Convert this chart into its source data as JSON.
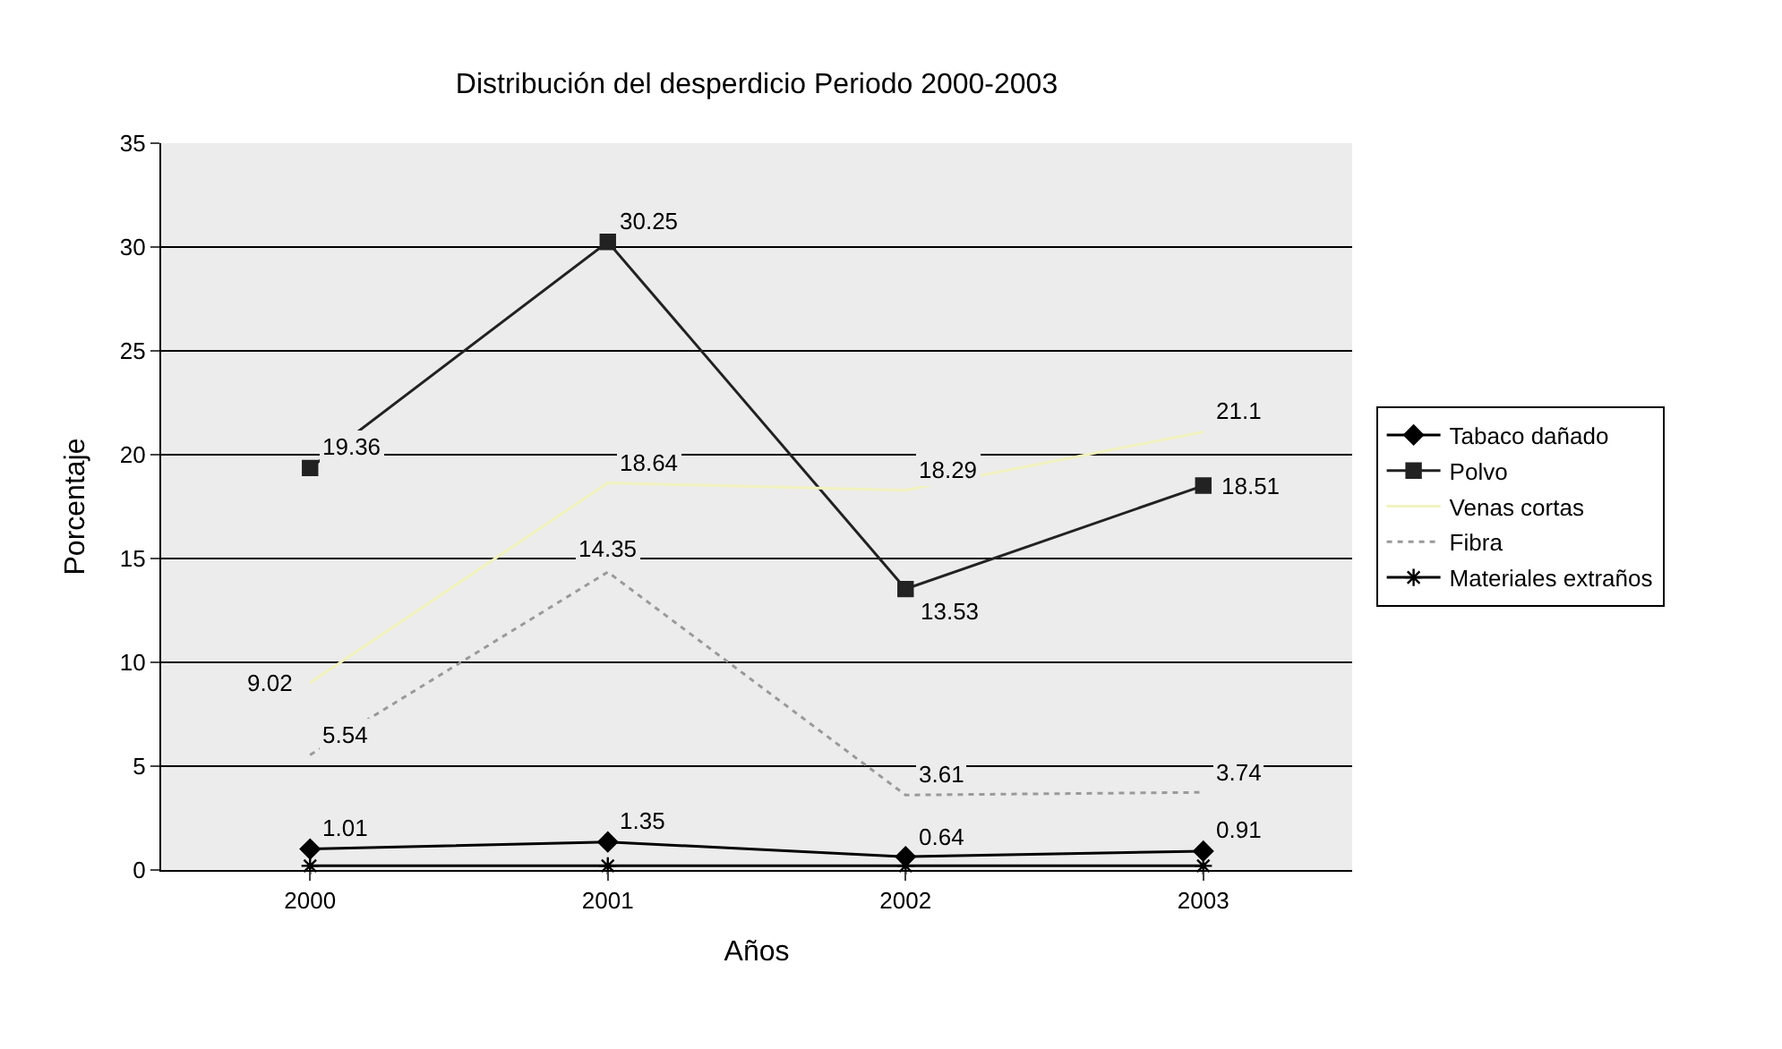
{
  "chart_data": {
    "type": "line",
    "title": "Distribución del desperdicio Periodo 2000-2003",
    "xlabel": "Años",
    "ylabel": "Porcentaje",
    "categories": [
      "2000",
      "2001",
      "2002",
      "2003"
    ],
    "series": [
      {
        "name": "Tabaco dañado",
        "color": "#000000",
        "marker": "diamond",
        "values": [
          1.01,
          1.35,
          0.64,
          0.91
        ],
        "value_labels": [
          "1.01",
          "1.35",
          "0.64",
          "0.91"
        ]
      },
      {
        "name": "Polvo",
        "color": "#222222",
        "marker": "square",
        "values": [
          19.36,
          30.25,
          13.53,
          18.51
        ],
        "value_labels": [
          "19.36",
          "30.25",
          "13.53",
          "18.51"
        ]
      },
      {
        "name": "Venas cortas",
        "color": "#f2f2c0",
        "marker": "none",
        "values": [
          9.02,
          18.64,
          18.29,
          21.1
        ],
        "value_labels": [
          "9.02",
          "18.64",
          "18.29",
          "21.1"
        ]
      },
      {
        "name": "Fibra",
        "color": "#9a9a9a",
        "marker": "none",
        "line_style": "dotted",
        "values": [
          5.54,
          14.35,
          3.61,
          3.74
        ],
        "value_labels": [
          "5.54",
          "14.35",
          "3.61",
          "3.74"
        ]
      },
      {
        "name": "Materiales extraños",
        "color": "#000000",
        "marker": "cross",
        "values": [
          0.2,
          0.2,
          0.2,
          0.2
        ]
      }
    ],
    "ylim": [
      0,
      35
    ],
    "yticks": [
      0,
      5,
      10,
      15,
      20,
      25,
      30,
      35
    ],
    "grid": "y",
    "legend": "right"
  }
}
